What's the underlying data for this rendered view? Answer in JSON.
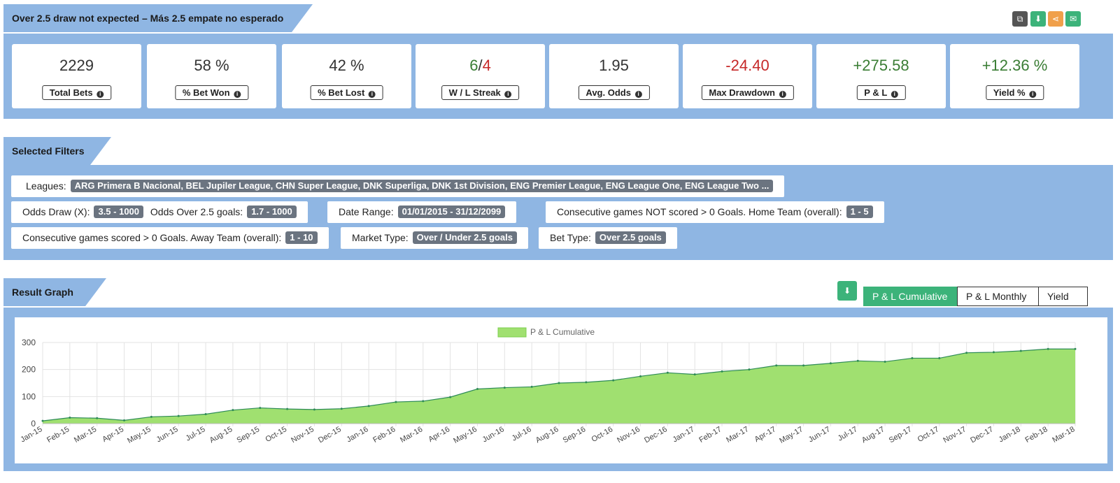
{
  "header": {
    "title": "Over 2.5 draw not expected – Más 2.5 empate no esperado",
    "buttons": [
      {
        "icon": "copy-icon",
        "color": "#555555"
      },
      {
        "icon": "download-icon",
        "color": "#3cb37a"
      },
      {
        "icon": "share-icon",
        "color": "#f0a04b"
      },
      {
        "icon": "envelope-icon",
        "color": "#3cb37a"
      }
    ]
  },
  "stats": [
    {
      "value": "2229",
      "label": "Total Bets"
    },
    {
      "value": "58 %",
      "label": "% Bet Won"
    },
    {
      "value": "42 %",
      "label": "% Bet Lost"
    },
    {
      "value_win": "6",
      "value_sep": "/",
      "value_loss": "4",
      "label": "W / L Streak"
    },
    {
      "value": "1.95",
      "label": "Avg. Odds"
    },
    {
      "value": "-24.40",
      "label": "Max Drawdown"
    },
    {
      "value": "+275.58",
      "label": "P & L"
    },
    {
      "value": "+12.36 %",
      "label": "Yield %"
    }
  ],
  "filters": {
    "title": "Selected Filters",
    "leagues_label": "Leagues:",
    "leagues_value": "ARG Primera B Nacional, BEL Jupiler League, CHN Super League, DNK Superliga, DNK 1st Division, ENG Premier League, ENG League One, ENG League Two ...",
    "odds_draw_label": "Odds Draw (X):",
    "odds_draw_value": "3.5 - 1000",
    "odds_over_label": "Odds Over 2.5 goals:",
    "odds_over_value": "1.7 - 1000",
    "date_range_label": "Date Range:",
    "date_range_value": "01/01/2015 - 31/12/2099",
    "home_not_scored_label": "Consecutive games NOT scored > 0 Goals. Home Team (overall):",
    "home_not_scored_value": "1 - 5",
    "away_scored_label": "Consecutive games scored > 0 Goals. Away Team (overall):",
    "away_scored_value": "1 - 10",
    "market_type_label": "Market Type:",
    "market_type_value": "Over / Under 2.5 goals",
    "bet_type_label": "Bet Type:",
    "bet_type_value": "Over 2.5 goals"
  },
  "graph": {
    "title": "Result Graph",
    "download_icon": "download-icon",
    "toggles": [
      "P & L Cumulative",
      "P & L Monthly",
      "Yield %"
    ],
    "active_toggle": "P & L Cumulative"
  },
  "colors": {
    "panel": "#8fb6e3",
    "accent": "#3cb37a",
    "area_fill": "#a0e070",
    "area_line": "#2e8b57"
  },
  "chart_data": {
    "type": "area",
    "legend": "P & L Cumulative",
    "legend_position": "top",
    "grid": true,
    "ylim": [
      0,
      300
    ],
    "yticks": [
      0,
      100,
      200,
      300
    ],
    "categories": [
      "Jan-15",
      "Feb-15",
      "Mar-15",
      "Apr-15",
      "May-15",
      "Jun-15",
      "Jul-15",
      "Aug-15",
      "Sep-15",
      "Oct-15",
      "Nov-15",
      "Dec-15",
      "Jan-16",
      "Feb-16",
      "Mar-16",
      "Apr-16",
      "May-16",
      "Jun-16",
      "Jul-16",
      "Aug-16",
      "Sep-16",
      "Oct-16",
      "Nov-16",
      "Dec-16",
      "Jan-17",
      "Feb-17",
      "Mar-17",
      "Apr-17",
      "May-17",
      "Jun-17",
      "Jul-17",
      "Aug-17",
      "Sep-17",
      "Oct-17",
      "Nov-17",
      "Dec-17",
      "Jan-18",
      "Feb-18",
      "Mar-18"
    ],
    "series": [
      {
        "name": "P & L Cumulative",
        "values": [
          10,
          22,
          20,
          12,
          25,
          28,
          35,
          50,
          58,
          54,
          52,
          55,
          65,
          80,
          83,
          98,
          128,
          133,
          136,
          150,
          153,
          160,
          175,
          188,
          182,
          193,
          200,
          215,
          215,
          223,
          232,
          229,
          242,
          242,
          262,
          264,
          269,
          276,
          276
        ]
      }
    ]
  }
}
